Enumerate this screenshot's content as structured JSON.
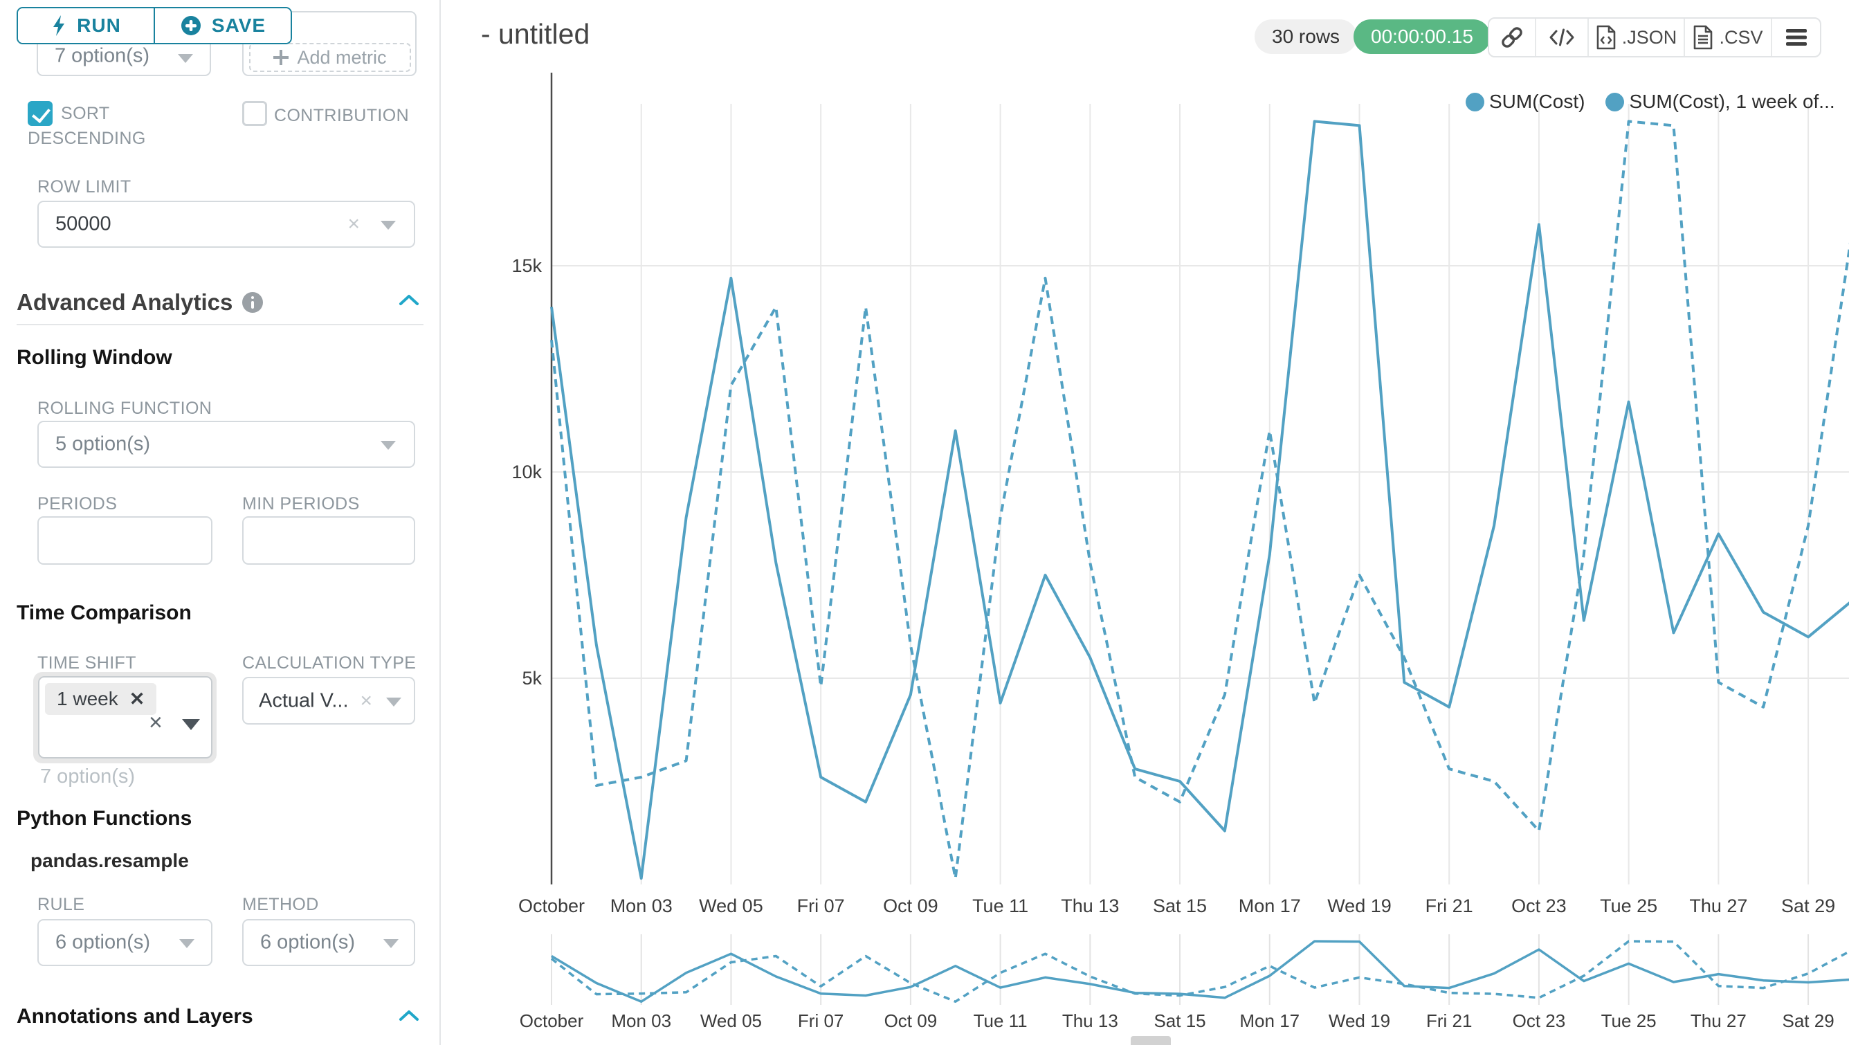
{
  "colors": {
    "accent_teal": "#19829e",
    "checkbox_teal": "#2aa6c6",
    "chevron_blue": "#20a7c9",
    "line_blue": "#52a1c3",
    "timer_green": "#5ab884"
  },
  "sidebar": {
    "run_button": {
      "label": "RUN"
    },
    "save_button": {
      "label": "SAVE"
    },
    "metrics_select": {
      "value": "7 option(s)"
    },
    "add_metric": {
      "label": "Add metric"
    },
    "sort_descending": {
      "label": "SORT DESCENDING",
      "checked": true
    },
    "contribution": {
      "label": "CONTRIBUTION",
      "checked": false
    },
    "row_limit": {
      "label": "ROW LIMIT",
      "value": "50000"
    },
    "advanced_analytics": {
      "title": "Advanced Analytics"
    },
    "rolling_window": {
      "title": "Rolling Window",
      "rolling_function": {
        "label": "ROLLING FUNCTION",
        "value": "5 option(s)"
      },
      "periods": {
        "label": "PERIODS",
        "value": ""
      },
      "min_periods": {
        "label": "MIN PERIODS",
        "value": ""
      }
    },
    "time_comparison": {
      "title": "Time Comparison",
      "time_shift": {
        "label": "TIME SHIFT",
        "tag": "1 week",
        "helper": "7 option(s)"
      },
      "calculation_type": {
        "label": "CALCULATION TYPE",
        "value": "Actual V..."
      }
    },
    "python_functions": {
      "title": "Python Functions",
      "subtitle": "pandas.resample",
      "rule": {
        "label": "RULE",
        "value": "6 option(s)"
      },
      "method": {
        "label": "METHOD",
        "value": "6 option(s)"
      }
    },
    "annotations": {
      "title": "Annotations and Layers"
    }
  },
  "header": {
    "title": "- untitled",
    "rows_badge": "30 rows",
    "timer": "00:00:00.15",
    "export_json_label": ".JSON",
    "export_csv_label": ".CSV"
  },
  "chart_data": {
    "type": "line",
    "title": "- untitled",
    "color": "#52a1c3",
    "grid": true,
    "legend_position": "top-right",
    "ylim": [
      0,
      18900
    ],
    "y_ticks": [
      {
        "value": 5000,
        "label": "5k"
      },
      {
        "value": 10000,
        "label": "10k"
      },
      {
        "value": 15000,
        "label": "15k"
      }
    ],
    "x_tick_labels": [
      "October",
      "Mon 03",
      "Wed 05",
      "Fri 07",
      "Oct 09",
      "Tue 11",
      "Thu 13",
      "Sat 15",
      "Mon 17",
      "Wed 19",
      "Fri 21",
      "Oct 23",
      "Tue 25",
      "Thu 27",
      "Sat 29"
    ],
    "x_days": "daily points Oct 01 - Oct 30",
    "series": [
      {
        "name": "SUM(Cost)",
        "legend_label": "SUM(Cost)",
        "style": "solid",
        "values": [
          14000,
          5800,
          150,
          8900,
          14700,
          7800,
          2600,
          2000,
          4600,
          11000,
          4400,
          7500,
          5500,
          2800,
          2500,
          1300,
          8000,
          18500,
          18400,
          4900,
          4300,
          8700,
          16000,
          6400,
          11700,
          6100,
          8500,
          6600,
          6000,
          6900
        ]
      },
      {
        "name": "SUM(Cost), 1 week offset",
        "legend_label": "SUM(Cost), 1 week of...",
        "style": "dashed",
        "values": [
          13200,
          2400,
          2600,
          3000,
          12100,
          14000,
          4800,
          14000,
          5800,
          150,
          8900,
          14700,
          7800,
          2600,
          2000,
          4600,
          11000,
          4400,
          7500,
          5500,
          2800,
          2500,
          1300,
          8000,
          18500,
          18400,
          4900,
          4300,
          8700,
          16000
        ]
      }
    ],
    "mini_chart": true
  }
}
